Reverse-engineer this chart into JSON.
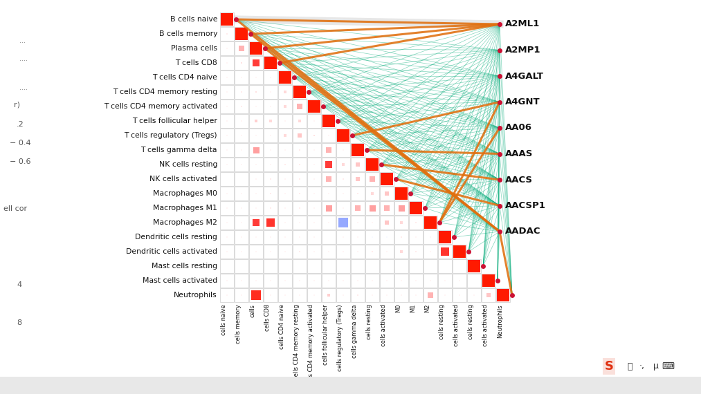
{
  "immune_cells": [
    "B cells naive",
    "B cells memory",
    "Plasma cells",
    "T cells CD8",
    "T cells CD4 naive",
    "T cells CD4 memory resting",
    "T cells CD4 memory activated",
    "T cells follicular helper",
    "T cells regulatory (Tregs)",
    "T cells gamma delta",
    "NK cells resting",
    "NK cells activated",
    "Macrophages M0",
    "Macrophages M1",
    "Macrophages M2",
    "Dendritic cells resting",
    "Dendritic cells activated",
    "Mast cells resting",
    "Mast cells activated",
    "Neutrophils"
  ],
  "genes": [
    "A2ML1",
    "A2MP1",
    "A4GALT",
    "A4GNT",
    "AA06",
    "AAAS",
    "AACS",
    "AACSP1",
    "AADAC"
  ],
  "background_color": "#f0f0f0",
  "node_color": "#cc1133",
  "edge_color_green": "#00aa77",
  "edge_color_orange": "#e07010",
  "edge_color_gray": "#c0c0c0",
  "left_labels_color": "#111111",
  "right_labels_color": "#111111",
  "cell_border_color": "#cccccc",
  "corr_matrix": [
    [
      1.0,
      0.1,
      0.05,
      0.05,
      0.05,
      0.05,
      0.05,
      0.05,
      0.05,
      0.05,
      0.05,
      0.0,
      0.05,
      0.05,
      0.05,
      0.05,
      0.05,
      0.0,
      0.05,
      0.05
    ],
    [
      0.1,
      1.0,
      0.4,
      0.15,
      0.05,
      0.1,
      0.1,
      0.05,
      0.05,
      0.05,
      0.05,
      0.0,
      0.05,
      0.05,
      0.05,
      0.05,
      0.05,
      0.0,
      0.05,
      0.05
    ],
    [
      0.05,
      0.4,
      1.0,
      0.55,
      0.05,
      0.15,
      0.05,
      0.25,
      0.05,
      0.5,
      0.05,
      0.05,
      0.05,
      0.05,
      0.55,
      0.05,
      0.05,
      0.0,
      0.05,
      0.75
    ],
    [
      0.05,
      0.15,
      0.55,
      1.0,
      0.05,
      0.05,
      0.05,
      0.2,
      0.05,
      0.05,
      0.05,
      0.1,
      0.1,
      0.1,
      0.65,
      0.05,
      0.05,
      0.0,
      0.05,
      0.05
    ],
    [
      0.05,
      0.05,
      0.05,
      0.05,
      1.0,
      0.2,
      0.2,
      0.05,
      0.2,
      0.05,
      0.1,
      0.05,
      0.05,
      0.05,
      0.05,
      0.05,
      0.05,
      0.0,
      0.05,
      0.05
    ],
    [
      0.05,
      0.1,
      0.15,
      0.05,
      0.2,
      1.0,
      0.4,
      0.2,
      0.3,
      0.1,
      0.1,
      0.1,
      0.1,
      0.1,
      0.05,
      0.05,
      0.1,
      0.0,
      0.05,
      0.05
    ],
    [
      0.05,
      0.1,
      0.05,
      0.05,
      0.2,
      0.4,
      1.0,
      0.05,
      0.15,
      0.05,
      0.05,
      0.05,
      0.05,
      0.05,
      0.05,
      0.05,
      0.05,
      0.0,
      0.05,
      0.05
    ],
    [
      0.05,
      0.05,
      0.25,
      0.2,
      0.05,
      0.2,
      0.05,
      1.0,
      0.05,
      0.4,
      0.55,
      0.4,
      0.05,
      0.5,
      0.05,
      0.0,
      0.05,
      0.0,
      0.05,
      0.25
    ],
    [
      0.05,
      0.05,
      0.05,
      0.05,
      0.2,
      0.3,
      0.15,
      0.05,
      1.0,
      0.05,
      0.2,
      0.1,
      0.05,
      0.05,
      -0.75,
      0.05,
      0.05,
      0.0,
      0.05,
      0.05
    ],
    [
      0.05,
      0.05,
      0.5,
      0.05,
      0.05,
      0.1,
      0.05,
      0.4,
      0.05,
      1.0,
      0.3,
      0.3,
      0.1,
      0.4,
      0.05,
      0.05,
      0.05,
      0.0,
      0.05,
      0.1
    ],
    [
      0.05,
      0.05,
      0.05,
      0.05,
      0.1,
      0.1,
      0.05,
      0.55,
      0.2,
      0.3,
      1.0,
      0.4,
      0.2,
      0.5,
      0.05,
      -0.05,
      0.1,
      0.0,
      0.05,
      0.05
    ],
    [
      0.0,
      0.0,
      0.05,
      0.1,
      0.05,
      0.1,
      0.05,
      0.4,
      0.1,
      0.3,
      0.4,
      1.0,
      0.3,
      0.4,
      0.3,
      -0.05,
      0.05,
      0.0,
      0.05,
      0.05
    ],
    [
      0.05,
      0.05,
      0.05,
      0.1,
      0.05,
      0.1,
      0.05,
      0.05,
      0.05,
      0.1,
      0.2,
      0.3,
      1.0,
      0.5,
      0.2,
      0.1,
      0.2,
      0.0,
      0.05,
      0.05
    ],
    [
      0.05,
      0.05,
      0.05,
      0.1,
      0.05,
      0.1,
      0.05,
      0.5,
      0.05,
      0.4,
      0.5,
      0.4,
      0.5,
      1.0,
      0.1,
      0.05,
      0.1,
      0.0,
      0.05,
      0.05
    ],
    [
      0.05,
      0.05,
      0.55,
      0.65,
      0.05,
      0.05,
      0.05,
      0.05,
      -0.75,
      0.05,
      0.05,
      0.3,
      0.2,
      0.1,
      1.0,
      0.05,
      0.05,
      0.0,
      0.05,
      0.4
    ],
    [
      0.05,
      0.05,
      0.05,
      0.05,
      0.05,
      0.05,
      0.05,
      0.0,
      0.05,
      0.05,
      -0.05,
      -0.05,
      0.1,
      0.05,
      0.05,
      1.0,
      0.65,
      0.0,
      0.05,
      0.05
    ],
    [
      0.05,
      0.05,
      0.05,
      0.05,
      0.05,
      0.1,
      0.05,
      0.05,
      0.05,
      0.05,
      0.1,
      0.05,
      0.2,
      0.1,
      0.05,
      0.65,
      1.0,
      0.0,
      0.05,
      0.05
    ],
    [
      0.0,
      0.0,
      0.0,
      0.0,
      0.0,
      0.0,
      0.0,
      0.0,
      0.0,
      0.0,
      0.0,
      0.0,
      0.0,
      0.0,
      0.0,
      0.0,
      0.0,
      1.0,
      0.0,
      0.05
    ],
    [
      0.05,
      0.05,
      0.05,
      0.05,
      0.05,
      0.05,
      0.05,
      0.05,
      0.05,
      0.05,
      0.05,
      0.05,
      0.05,
      0.05,
      0.05,
      0.05,
      0.05,
      0.0,
      1.0,
      0.3
    ],
    [
      0.05,
      0.05,
      0.75,
      0.05,
      0.05,
      0.05,
      0.05,
      0.25,
      0.05,
      0.1,
      0.05,
      0.05,
      0.05,
      0.05,
      0.4,
      0.05,
      0.05,
      0.05,
      0.3,
      1.0
    ]
  ],
  "orange_edges": [
    [
      0,
      0
    ],
    [
      1,
      0
    ],
    [
      2,
      0
    ],
    [
      3,
      0
    ],
    [
      0,
      8
    ],
    [
      1,
      8
    ],
    [
      2,
      8
    ],
    [
      19,
      8
    ],
    [
      8,
      3
    ],
    [
      14,
      3
    ],
    [
      14,
      4
    ],
    [
      9,
      5
    ],
    [
      10,
      6
    ],
    [
      11,
      7
    ]
  ]
}
